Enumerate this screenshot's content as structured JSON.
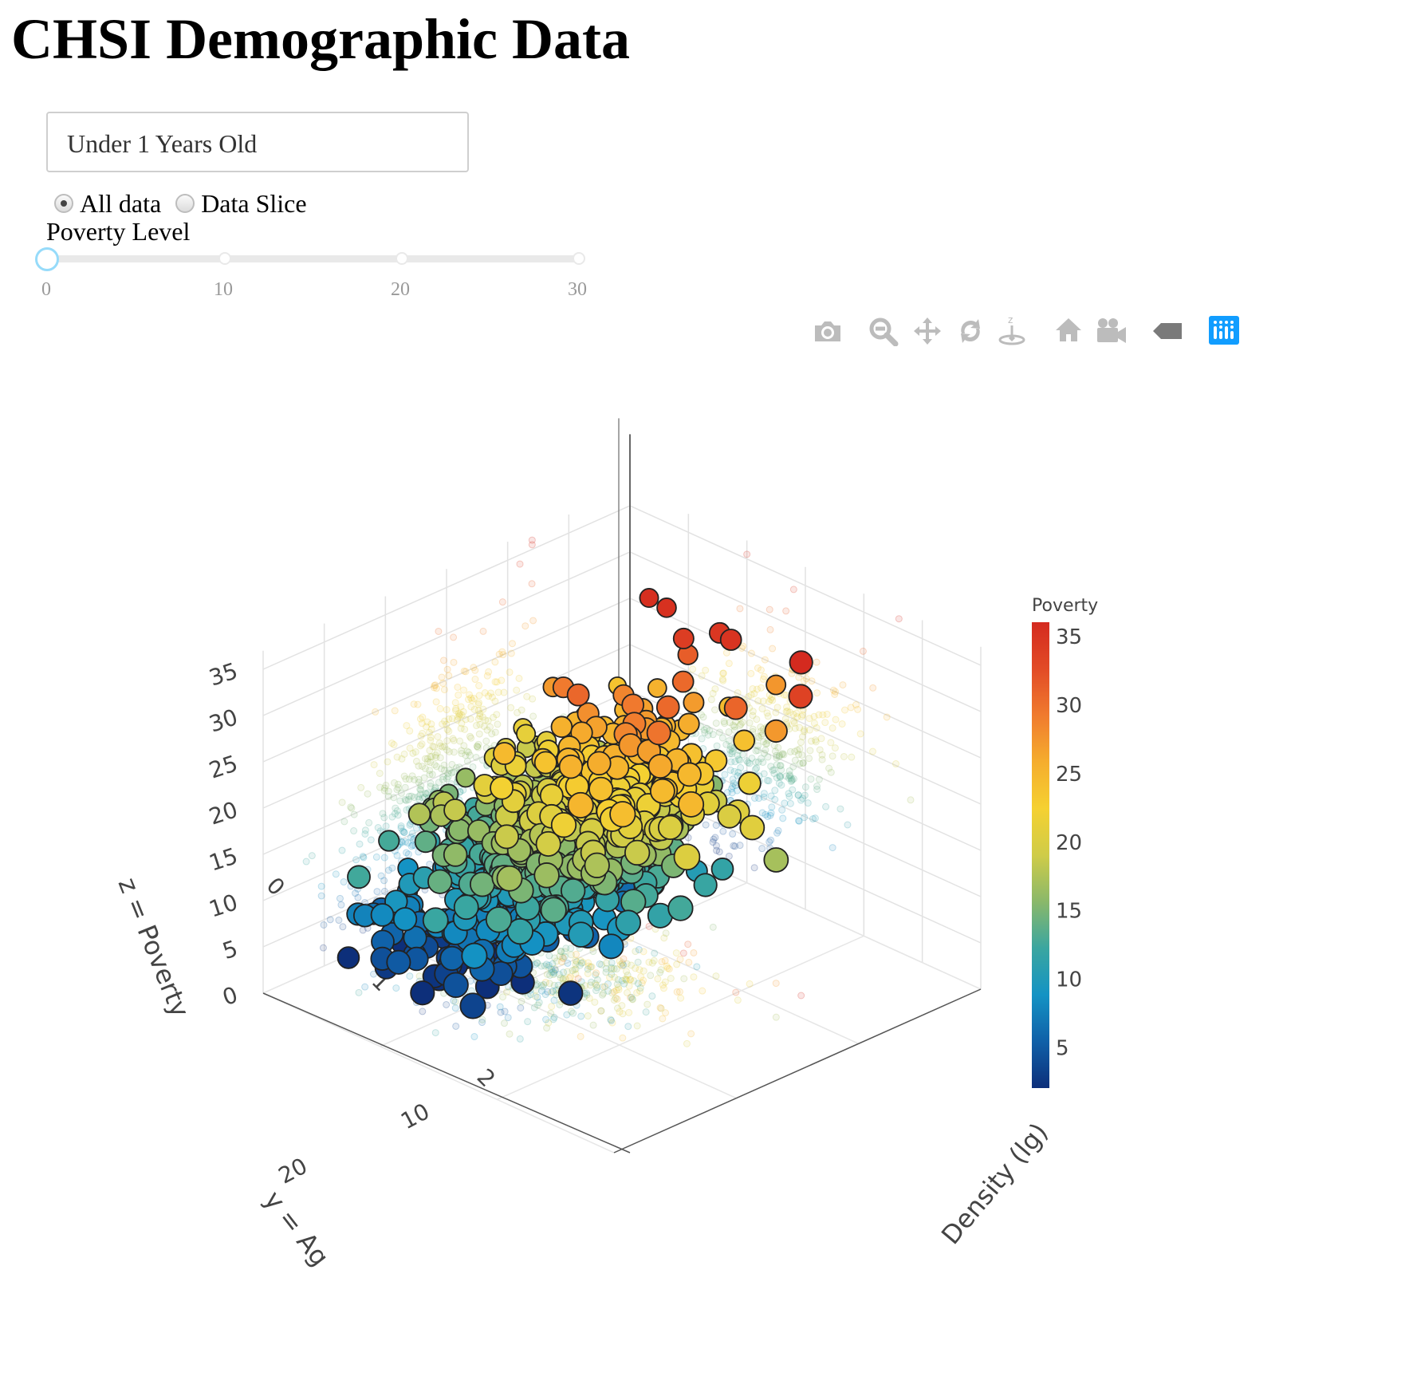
{
  "page": {
    "title": "CHSI Demographic Data"
  },
  "controls": {
    "dropdown": {
      "selected": "Under 1 Years Old"
    },
    "radio": {
      "options": [
        {
          "label": "All data",
          "checked": true
        },
        {
          "label": "Data Slice",
          "checked": false
        }
      ]
    },
    "slider": {
      "label": "Poverty Level",
      "min": 0,
      "max": 30,
      "value": 0,
      "marks": [
        "0",
        "10",
        "20",
        "30"
      ],
      "accent": "#96dbfa"
    }
  },
  "modebar": {
    "icons": [
      {
        "name": "camera-icon",
        "title": "Download plot as a png"
      },
      {
        "name": "zoom-icon",
        "title": "Zoom"
      },
      {
        "name": "pan-icon",
        "title": "Pan"
      },
      {
        "name": "orbit-rotation-icon",
        "title": "Orbital rotation"
      },
      {
        "name": "turntable-rotation-icon",
        "title": "Turntable rotation"
      },
      {
        "name": "home-icon",
        "title": "Reset camera to default"
      },
      {
        "name": "camera-video-icon",
        "title": "Reset camera to last save"
      },
      {
        "name": "hover-tag-icon",
        "title": "Toggle show closest data on hover"
      },
      {
        "name": "plotly-logo-icon",
        "title": "Produced with Plotly"
      }
    ]
  },
  "chart_data": {
    "type": "scatter",
    "scene": "3d",
    "x_axis": {
      "label": "x = Population Density (lg)",
      "visible_label": "Density (lg)",
      "ticks": [
        "0",
        "1",
        "2"
      ]
    },
    "y_axis": {
      "label": "y = Age",
      "visible_label": "y = Ag",
      "ticks": [
        "10",
        "20"
      ]
    },
    "z_axis": {
      "label": "z = Poverty",
      "ticks": [
        "0",
        "5",
        "10",
        "15",
        "20",
        "25",
        "30",
        "35"
      ],
      "range": [
        0,
        37
      ]
    },
    "colorbar": {
      "title": "Poverty",
      "ticks": [
        "5",
        "10",
        "15",
        "20",
        "25",
        "30",
        "35"
      ],
      "range": [
        2,
        36
      ],
      "colorscale": [
        "#0d2f7a",
        "#1060a8",
        "#1493c4",
        "#3aa6a0",
        "#8ab86a",
        "#cfcc48",
        "#f5d131",
        "#f5ad2d",
        "#f07b2e",
        "#e24b26",
        "#d42a1f"
      ]
    },
    "grid": true,
    "series": [
      {
        "type": "projection-shadows",
        "opacity": 0.15,
        "planes": [
          "x-z",
          "y-z",
          "x-y"
        ]
      },
      {
        "type": "markers",
        "marker_line": "#222222",
        "points": [
          {
            "x": 1.0,
            "y": 8,
            "z": 35.5
          },
          {
            "x": 1.15,
            "y": 8,
            "z": 35.3
          },
          {
            "x": 1.4,
            "y": 9,
            "z": 34.0
          },
          {
            "x": 1.7,
            "y": 8,
            "z": 35.0
          },
          {
            "x": 2.3,
            "y": 8,
            "z": 36.0
          },
          {
            "x": 2.4,
            "y": 9,
            "z": 33.5
          },
          {
            "x": 1.2,
            "y": 12,
            "z": 28.5
          },
          {
            "x": 1.5,
            "y": 10,
            "z": 30.5
          },
          {
            "x": 0.8,
            "y": 17,
            "z": 21.5
          },
          {
            "x": 0.7,
            "y": 21,
            "z": 18.5
          },
          {
            "x": 0.5,
            "y": 22,
            "z": 17.5
          },
          {
            "x": 2.3,
            "y": 12,
            "z": 20.5
          },
          {
            "x": 2.4,
            "y": 11,
            "z": 17.0
          },
          {
            "x": 1.9,
            "y": 12,
            "z": 12.0
          },
          {
            "x": 0.4,
            "y": 26,
            "z": 12.5
          },
          {
            "x": 0.5,
            "y": 25,
            "z": 5.5
          }
        ]
      }
    ]
  }
}
